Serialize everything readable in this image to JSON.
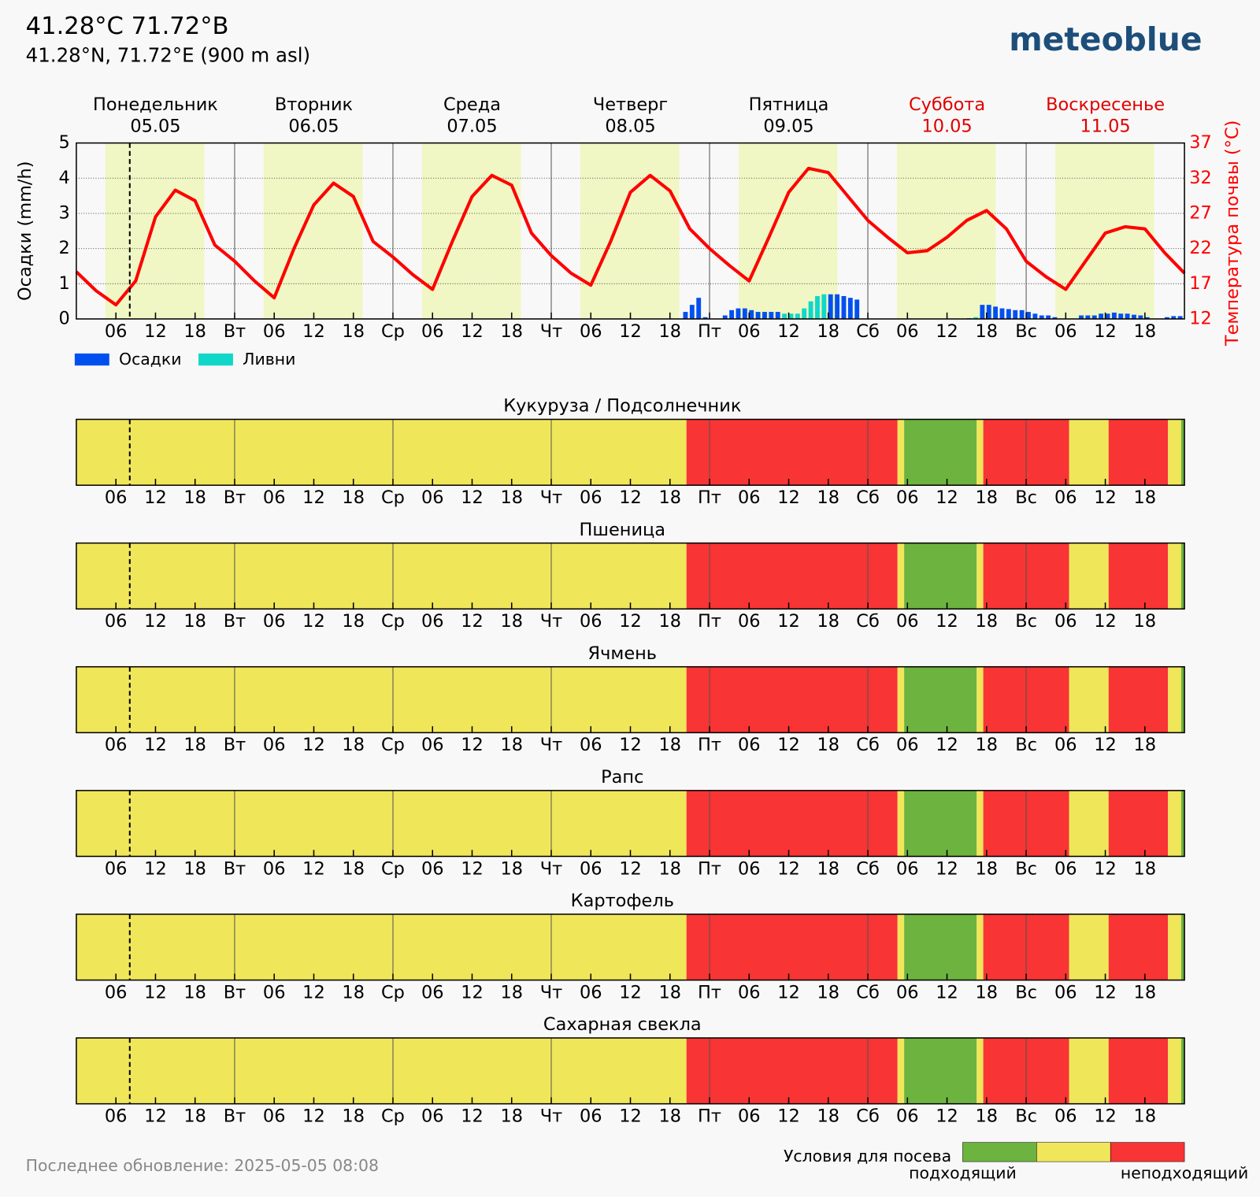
{
  "header": {
    "title": "41.28°C 71.72°B",
    "subtitle": "41.28°N, 71.72°E (900 m asl)",
    "logo": "meteoblue"
  },
  "chart_data": [
    {
      "type": "combo",
      "days": [
        {
          "name": "Понедельник",
          "date": "05.05",
          "color": "#000000"
        },
        {
          "name": "Вторник",
          "date": "06.05",
          "color": "#000000"
        },
        {
          "name": "Среда",
          "date": "07.05",
          "color": "#000000"
        },
        {
          "name": "Четверг",
          "date": "08.05",
          "color": "#000000"
        },
        {
          "name": "Пятница",
          "date": "09.05",
          "color": "#000000"
        },
        {
          "name": "Суббота",
          "date": "10.05",
          "color": "#e00000"
        },
        {
          "name": "Воскресенье",
          "date": "11.05",
          "color": "#e00000"
        }
      ],
      "xlim": [
        0,
        168
      ],
      "xticks": [
        {
          "value": 6,
          "label": "06"
        },
        {
          "value": 12,
          "label": "12"
        },
        {
          "value": 18,
          "label": "18"
        },
        {
          "value": 24,
          "label": "Вт"
        },
        {
          "value": 30,
          "label": "06"
        },
        {
          "value": 36,
          "label": "12"
        },
        {
          "value": 42,
          "label": "18"
        },
        {
          "value": 48,
          "label": "Ср"
        },
        {
          "value": 54,
          "label": "06"
        },
        {
          "value": 60,
          "label": "12"
        },
        {
          "value": 66,
          "label": "18"
        },
        {
          "value": 72,
          "label": "Чт"
        },
        {
          "value": 78,
          "label": "06"
        },
        {
          "value": 84,
          "label": "12"
        },
        {
          "value": 90,
          "label": "18"
        },
        {
          "value": 96,
          "label": "Пт"
        },
        {
          "value": 102,
          "label": "06"
        },
        {
          "value": 108,
          "label": "12"
        },
        {
          "value": 114,
          "label": "18"
        },
        {
          "value": 120,
          "label": "Сб"
        },
        {
          "value": 126,
          "label": "06"
        },
        {
          "value": 132,
          "label": "12"
        },
        {
          "value": 138,
          "label": "18"
        },
        {
          "value": 144,
          "label": "Вс"
        },
        {
          "value": 150,
          "label": "06"
        },
        {
          "value": 156,
          "label": "12"
        },
        {
          "value": 162,
          "label": "18"
        }
      ],
      "ylim": [
        0,
        5
      ],
      "yticks": [
        0,
        1,
        2,
        3,
        4,
        5
      ],
      "y2lim": [
        12,
        37
      ],
      "y2ticks": [
        12,
        17,
        22,
        27,
        32,
        37
      ],
      "ylabel": "Осадки (mm/h)",
      "y2label": "Температура почвы (°C)",
      "daylight": [
        4.4,
        19.4
      ],
      "now": 8.1,
      "grid": true,
      "series": [
        {
          "name": "Осадки",
          "type": "bar",
          "color": "#0050f0",
          "x": [
            92,
            93,
            94,
            95,
            98,
            99,
            100,
            101,
            102,
            103,
            104,
            105,
            106,
            114,
            115,
            116,
            117,
            118,
            135,
            137,
            138,
            139,
            140,
            141,
            142,
            143,
            144,
            145,
            146,
            147,
            148,
            152,
            153,
            154,
            155,
            156,
            157,
            158,
            159,
            160,
            161,
            162,
            165,
            166,
            167
          ],
          "values": [
            0.2,
            0.4,
            0.6,
            0.05,
            0.1,
            0.25,
            0.3,
            0.3,
            0.25,
            0.2,
            0.2,
            0.2,
            0.2,
            0.7,
            0.7,
            0.65,
            0.6,
            0.55,
            0.02,
            0.4,
            0.4,
            0.35,
            0.3,
            0.28,
            0.25,
            0.25,
            0.2,
            0.15,
            0.1,
            0.1,
            0.05,
            0.1,
            0.1,
            0.1,
            0.15,
            0.15,
            0.18,
            0.15,
            0.15,
            0.12,
            0.1,
            0.05,
            0.05,
            0.08,
            0.08
          ]
        },
        {
          "name": "Ливни",
          "type": "bar",
          "color": "#10d8c8",
          "x": [
            107,
            108,
            109,
            110,
            111,
            112,
            113,
            136
          ],
          "values": [
            0.15,
            0.15,
            0.15,
            0.3,
            0.5,
            0.65,
            0.7,
            0.05
          ]
        },
        {
          "type": "line",
          "axis": "y2",
          "color": "#ff0000",
          "x": [
            0,
            3,
            6,
            9,
            12,
            15,
            18,
            21,
            24,
            27,
            30,
            33,
            36,
            39,
            42,
            45,
            48,
            51,
            54,
            57,
            60,
            63,
            66,
            69,
            72,
            75,
            78,
            81,
            84,
            87,
            90,
            93,
            96,
            99,
            102,
            105,
            108,
            111,
            114,
            117,
            120,
            123,
            126,
            129,
            132,
            135,
            138,
            141,
            144,
            147,
            150,
            153,
            156,
            159,
            162,
            165,
            168
          ],
          "values": [
            18.7,
            16,
            14,
            17.4,
            26.5,
            30.3,
            28.8,
            22.5,
            20.2,
            17.4,
            15,
            22,
            28.2,
            31.3,
            29.4,
            23,
            20.8,
            18.3,
            16.2,
            23,
            29.4,
            32.4,
            31,
            24.2,
            21,
            18.5,
            16.8,
            23,
            30,
            32.4,
            30.2,
            24.8,
            22,
            19.6,
            17.4,
            23.6,
            30,
            33.4,
            32.8,
            29.4,
            26,
            23.6,
            21.4,
            21.7,
            23.6,
            26,
            27.4,
            24.8,
            20.2,
            18,
            16.2,
            20.2,
            24.2,
            25.1,
            24.8,
            21.4,
            18.5
          ]
        }
      ]
    },
    {
      "type": "timeline",
      "title": "Кукуруза / Подсолнечник",
      "bounds": [
        0,
        92.5,
        124.5,
        125.5,
        136.5,
        137.5,
        150.5,
        156.5,
        165.5,
        167.5,
        168
      ],
      "colors": [
        "#f0e65a",
        "#f83434",
        "#f0e65a",
        "#6db33f",
        "#f0e65a",
        "#f83434",
        "#f0e65a",
        "#f83434",
        "#f0e65a",
        "#6db33f"
      ]
    },
    {
      "type": "timeline",
      "title": "Пшеница",
      "bounds": [
        0,
        92.5,
        124.5,
        125.5,
        136.5,
        137.5,
        150.5,
        156.5,
        165.5,
        167.5,
        168
      ],
      "colors": [
        "#f0e65a",
        "#f83434",
        "#f0e65a",
        "#6db33f",
        "#f0e65a",
        "#f83434",
        "#f0e65a",
        "#f83434",
        "#f0e65a",
        "#6db33f"
      ]
    },
    {
      "type": "timeline",
      "title": "Ячмень",
      "bounds": [
        0,
        92.5,
        124.5,
        125.5,
        136.5,
        137.5,
        150.5,
        156.5,
        165.5,
        167.5,
        168
      ],
      "colors": [
        "#f0e65a",
        "#f83434",
        "#f0e65a",
        "#6db33f",
        "#f0e65a",
        "#f83434",
        "#f0e65a",
        "#f83434",
        "#f0e65a",
        "#6db33f"
      ]
    },
    {
      "type": "timeline",
      "title": "Рапс",
      "bounds": [
        0,
        92.5,
        124.5,
        125.5,
        136.5,
        137.5,
        150.5,
        156.5,
        165.5,
        167.5,
        168
      ],
      "colors": [
        "#f0e65a",
        "#f83434",
        "#f0e65a",
        "#6db33f",
        "#f0e65a",
        "#f83434",
        "#f0e65a",
        "#f83434",
        "#f0e65a",
        "#6db33f"
      ]
    },
    {
      "type": "timeline",
      "title": "Картофель",
      "bounds": [
        0,
        92.5,
        124.5,
        125.5,
        136.5,
        137.5,
        150.5,
        156.5,
        165.5,
        167.5,
        168
      ],
      "colors": [
        "#f0e65a",
        "#f83434",
        "#f0e65a",
        "#6db33f",
        "#f0e65a",
        "#f83434",
        "#f0e65a",
        "#f83434",
        "#f0e65a",
        "#6db33f"
      ]
    },
    {
      "type": "timeline",
      "title": "Сахарная свекла",
      "bounds": [
        0,
        92.5,
        124.5,
        125.5,
        136.5,
        137.5,
        150.5,
        156.5,
        165.5,
        167.5,
        168
      ],
      "colors": [
        "#f0e65a",
        "#f83434",
        "#f0e65a",
        "#6db33f",
        "#f0e65a",
        "#f83434",
        "#f0e65a",
        "#f83434",
        "#f0e65a",
        "#6db33f"
      ]
    }
  ],
  "legend": {
    "title": "Условия для посева",
    "colors": [
      "#6db33f",
      "#f0e65a",
      "#f83434"
    ],
    "labels": [
      "подходящий",
      "неподходящий"
    ]
  },
  "footer": "Последнее обновление: 2025-05-05 08:08"
}
